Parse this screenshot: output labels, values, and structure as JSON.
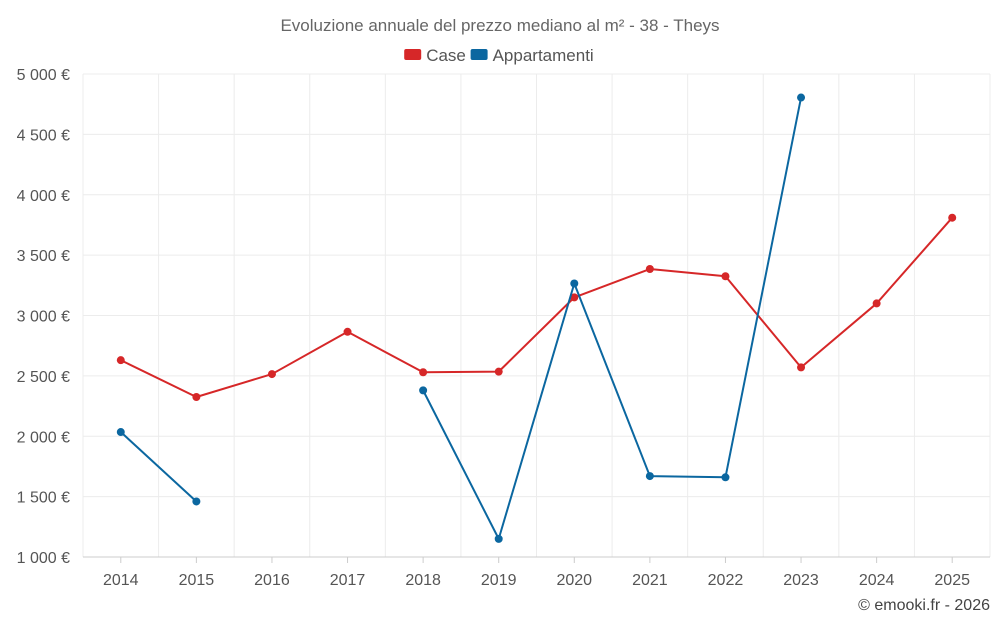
{
  "chart_data": {
    "type": "line",
    "title": "Evoluzione annuale del prezzo mediano al m² - 38 - Theys",
    "categories": [
      "2014",
      "2015",
      "2016",
      "2017",
      "2018",
      "2019",
      "2020",
      "2021",
      "2022",
      "2023",
      "2024",
      "2025"
    ],
    "series": [
      {
        "name": "Case",
        "color": "#d62728",
        "values": [
          2630,
          2325,
          2515,
          2865,
          2530,
          2535,
          3150,
          3385,
          3325,
          2570,
          3100,
          3810
        ]
      },
      {
        "name": "Appartamenti",
        "color": "#0b67a0",
        "values": [
          2035,
          1460,
          null,
          null,
          2380,
          1150,
          3265,
          1670,
          1660,
          4805,
          null,
          null
        ]
      }
    ],
    "ylim": [
      1000,
      5000
    ],
    "yticks": [
      1000,
      1500,
      2000,
      2500,
      3000,
      3500,
      4000,
      4500,
      5000
    ],
    "ytick_labels": [
      "1 000 €",
      "1 500 €",
      "2 000 €",
      "2 500 €",
      "3 000 €",
      "3 500 €",
      "4 000 €",
      "4 500 €",
      "5 000 €"
    ],
    "xlabel": "",
    "ylabel": "",
    "grid": true,
    "legend": "top-center",
    "credit": "© emooki.fr - 2026"
  }
}
